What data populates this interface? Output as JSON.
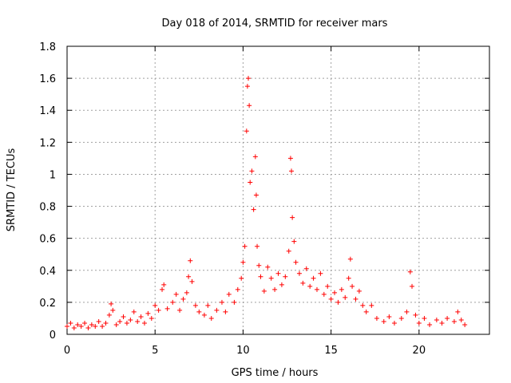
{
  "chart_data": {
    "type": "scatter",
    "title": "Day 018 of 2014, SRMTID for receiver mars",
    "xlabel": "GPS time / hours",
    "ylabel": "SRMTID / TECUs",
    "xlim": [
      0,
      24
    ],
    "ylim": [
      0,
      1.8
    ],
    "xticks": [
      0,
      5,
      10,
      15,
      20
    ],
    "xtick_labels": [
      "0",
      "5",
      "10",
      "15",
      "20"
    ],
    "yticks": [
      0,
      0.2,
      0.4,
      0.6,
      0.8,
      1,
      1.2,
      1.4,
      1.6,
      1.8
    ],
    "ytick_labels": [
      "0",
      "0.2",
      "0.4",
      "0.6",
      "0.8",
      "1",
      "1.2",
      "1.4",
      "1.6",
      "1.8"
    ],
    "grid": true,
    "marker": "+",
    "marker_color": "#ff0000",
    "series": [
      {
        "name": "SRMTID",
        "points": [
          [
            0.0,
            0.05
          ],
          [
            0.2,
            0.07
          ],
          [
            0.4,
            0.04
          ],
          [
            0.6,
            0.06
          ],
          [
            0.8,
            0.05
          ],
          [
            1.0,
            0.07
          ],
          [
            1.2,
            0.04
          ],
          [
            1.4,
            0.06
          ],
          [
            1.6,
            0.05
          ],
          [
            1.8,
            0.08
          ],
          [
            2.0,
            0.05
          ],
          [
            2.2,
            0.07
          ],
          [
            2.4,
            0.12
          ],
          [
            2.5,
            0.19
          ],
          [
            2.6,
            0.15
          ],
          [
            2.8,
            0.06
          ],
          [
            3.0,
            0.08
          ],
          [
            3.2,
            0.11
          ],
          [
            3.4,
            0.07
          ],
          [
            3.6,
            0.09
          ],
          [
            3.8,
            0.14
          ],
          [
            4.0,
            0.08
          ],
          [
            4.2,
            0.11
          ],
          [
            4.4,
            0.07
          ],
          [
            4.6,
            0.13
          ],
          [
            4.8,
            0.1
          ],
          [
            5.0,
            0.18
          ],
          [
            5.2,
            0.15
          ],
          [
            5.4,
            0.28
          ],
          [
            5.5,
            0.31
          ],
          [
            5.7,
            0.16
          ],
          [
            6.0,
            0.2
          ],
          [
            6.2,
            0.25
          ],
          [
            6.4,
            0.15
          ],
          [
            6.6,
            0.22
          ],
          [
            6.8,
            0.26
          ],
          [
            6.9,
            0.36
          ],
          [
            7.0,
            0.46
          ],
          [
            7.1,
            0.33
          ],
          [
            7.3,
            0.18
          ],
          [
            7.5,
            0.14
          ],
          [
            7.8,
            0.12
          ],
          [
            8.0,
            0.18
          ],
          [
            8.2,
            0.1
          ],
          [
            8.5,
            0.15
          ],
          [
            8.8,
            0.2
          ],
          [
            9.0,
            0.14
          ],
          [
            9.2,
            0.25
          ],
          [
            9.5,
            0.2
          ],
          [
            9.7,
            0.28
          ],
          [
            9.9,
            0.35
          ],
          [
            10.0,
            0.45
          ],
          [
            10.1,
            0.55
          ],
          [
            10.2,
            1.27
          ],
          [
            10.25,
            1.55
          ],
          [
            10.3,
            1.6
          ],
          [
            10.35,
            1.43
          ],
          [
            10.4,
            0.95
          ],
          [
            10.5,
            1.02
          ],
          [
            10.6,
            0.78
          ],
          [
            10.7,
            1.11
          ],
          [
            10.75,
            0.87
          ],
          [
            10.8,
            0.55
          ],
          [
            10.9,
            0.43
          ],
          [
            11.0,
            0.36
          ],
          [
            11.2,
            0.27
          ],
          [
            11.4,
            0.42
          ],
          [
            11.6,
            0.35
          ],
          [
            11.8,
            0.28
          ],
          [
            12.0,
            0.38
          ],
          [
            12.2,
            0.31
          ],
          [
            12.4,
            0.36
          ],
          [
            12.6,
            0.52
          ],
          [
            12.7,
            1.1
          ],
          [
            12.75,
            1.02
          ],
          [
            12.8,
            0.73
          ],
          [
            12.9,
            0.58
          ],
          [
            13.0,
            0.45
          ],
          [
            13.2,
            0.38
          ],
          [
            13.4,
            0.32
          ],
          [
            13.6,
            0.41
          ],
          [
            13.8,
            0.3
          ],
          [
            14.0,
            0.35
          ],
          [
            14.2,
            0.28
          ],
          [
            14.4,
            0.38
          ],
          [
            14.6,
            0.25
          ],
          [
            14.8,
            0.3
          ],
          [
            15.0,
            0.22
          ],
          [
            15.2,
            0.26
          ],
          [
            15.4,
            0.2
          ],
          [
            15.6,
            0.28
          ],
          [
            15.8,
            0.23
          ],
          [
            16.0,
            0.35
          ],
          [
            16.1,
            0.47
          ],
          [
            16.2,
            0.3
          ],
          [
            16.4,
            0.22
          ],
          [
            16.6,
            0.27
          ],
          [
            16.8,
            0.18
          ],
          [
            17.0,
            0.14
          ],
          [
            17.3,
            0.18
          ],
          [
            17.6,
            0.1
          ],
          [
            18.0,
            0.08
          ],
          [
            18.3,
            0.11
          ],
          [
            18.6,
            0.07
          ],
          [
            19.0,
            0.1
          ],
          [
            19.3,
            0.14
          ],
          [
            19.5,
            0.39
          ],
          [
            19.6,
            0.3
          ],
          [
            19.8,
            0.12
          ],
          [
            20.0,
            0.07
          ],
          [
            20.3,
            0.1
          ],
          [
            20.6,
            0.06
          ],
          [
            21.0,
            0.09
          ],
          [
            21.3,
            0.07
          ],
          [
            21.6,
            0.1
          ],
          [
            22.0,
            0.08
          ],
          [
            22.2,
            0.14
          ],
          [
            22.4,
            0.09
          ],
          [
            22.6,
            0.06
          ]
        ]
      }
    ]
  }
}
